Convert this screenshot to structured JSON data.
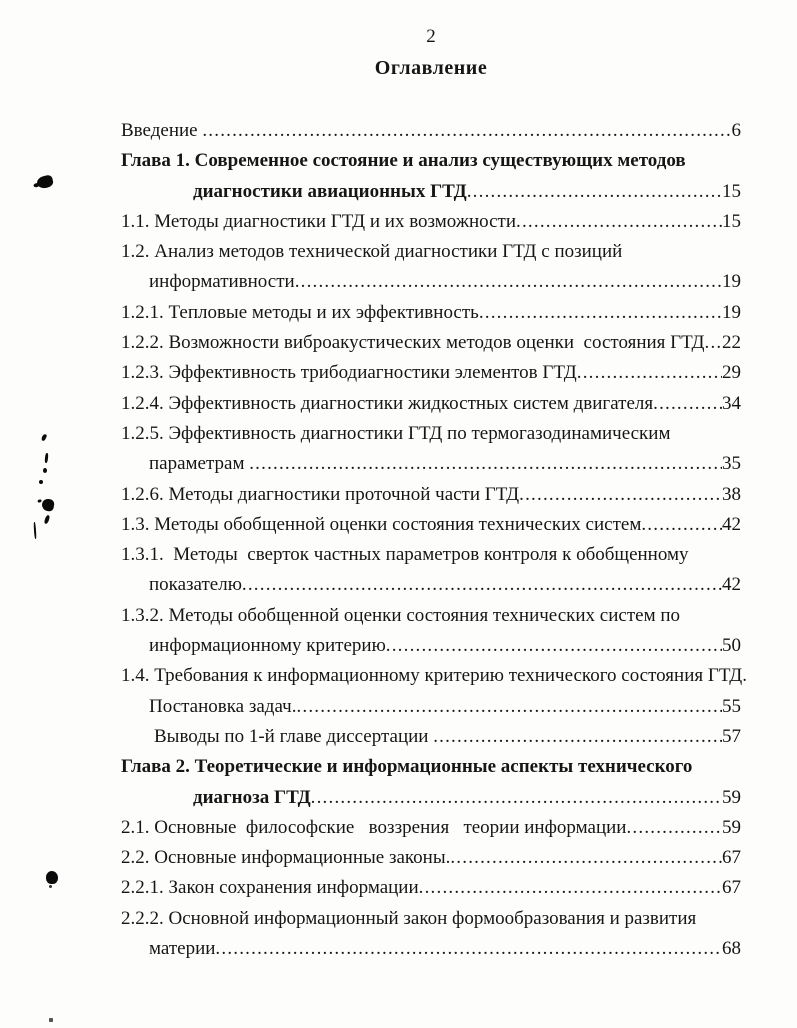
{
  "page": {
    "number": "2",
    "title": "Оглавление"
  },
  "toc": {
    "leader_dot": ".",
    "entries": [
      {
        "text": "Введение ",
        "indent": "main",
        "bold": false,
        "dots": true,
        "page": "6"
      },
      {
        "text": "Глава 1. Современное состояние и анализ существующих методов",
        "indent": "main",
        "bold": true,
        "dots": false,
        "page": null
      },
      {
        "text": "диагностики авиационных ГТД",
        "indent": "chapter",
        "bold": true,
        "dots": true,
        "page": "15"
      },
      {
        "text": "1.1. Методы диагностики ГТД и их возможности",
        "indent": "main",
        "bold": false,
        "dots": true,
        "page": "15"
      },
      {
        "text": "1.2. Анализ методов технической диагностики ГТД с позиций",
        "indent": "main",
        "bold": false,
        "dots": false,
        "page": null
      },
      {
        "text": "информативности",
        "indent": "cont",
        "bold": false,
        "dots": true,
        "page": "19"
      },
      {
        "text": "1.2.1. Тепловые методы и их эффективность",
        "indent": "main",
        "bold": false,
        "dots": true,
        "page": "19"
      },
      {
        "text": "1.2.2. Возможности виброакустических методов оценки  состояния ГТД",
        "indent": "main",
        "bold": false,
        "dots": true,
        "page": "22"
      },
      {
        "text": "1.2.3. Эффективность трибодиагностики элементов ГТД",
        "indent": "main",
        "bold": false,
        "dots": true,
        "page": "29"
      },
      {
        "text": "1.2.4. Эффективность диагностики жидкостных систем двигателя",
        "indent": "main",
        "bold": false,
        "dots": true,
        "page": "34"
      },
      {
        "text": "1.2.5. Эффективность диагностики ГТД по термогазодинамическим",
        "indent": "main",
        "bold": false,
        "dots": false,
        "page": null
      },
      {
        "text": "параметрам ",
        "indent": "cont",
        "bold": false,
        "dots": true,
        "page": "35"
      },
      {
        "text": "1.2.6. Методы диагностики проточной части ГТД",
        "indent": "main",
        "bold": false,
        "dots": true,
        "page": "38"
      },
      {
        "text": "1.3. Методы обобщенной оценки состояния технических систем",
        "indent": "main",
        "bold": false,
        "dots": true,
        "page": "42"
      },
      {
        "text": "1.3.1.  Методы  сверток частных параметров контроля к обобщенному",
        "indent": "main",
        "bold": false,
        "dots": false,
        "page": null
      },
      {
        "text": "показателю",
        "indent": "cont",
        "bold": false,
        "dots": true,
        "page": "42"
      },
      {
        "text": "1.3.2. Методы обобщенной оценки состояния технических систем по",
        "indent": "main",
        "bold": false,
        "dots": false,
        "page": null
      },
      {
        "text": "информационному критерию",
        "indent": "cont",
        "bold": false,
        "dots": true,
        "page": "50"
      },
      {
        "text": "1.4. Требования к информационному критерию технического состояния ГТД.",
        "indent": "main",
        "bold": false,
        "dots": false,
        "page": null
      },
      {
        "text": "Постановка задач.",
        "indent": "cont",
        "bold": false,
        "dots": true,
        "page": "55"
      },
      {
        "text": "Выводы по 1-й главе диссертации ",
        "indent": "cont2",
        "bold": false,
        "dots": true,
        "page": "57"
      },
      {
        "text": "Глава 2. Теоретические и информационные аспекты технического",
        "indent": "main",
        "bold": true,
        "dots": false,
        "page": null
      },
      {
        "text": "диагноза ГТД",
        "indent": "chapter",
        "bold": true,
        "dots": true,
        "page": "59"
      },
      {
        "text": "2.1. Основные  философские   воззрения   теории информации",
        "indent": "main",
        "bold": false,
        "dots": true,
        "page": "59"
      },
      {
        "text": "2.2. Основные информационные законы.",
        "indent": "main",
        "bold": false,
        "dots": true,
        "page": "67"
      },
      {
        "text": "2.2.1. Закон сохранения информации",
        "indent": "main",
        "bold": false,
        "dots": true,
        "page": "67"
      },
      {
        "text": "2.2.2. Основной информационный закон формообразования и развития",
        "indent": "main",
        "bold": false,
        "dots": false,
        "page": null
      },
      {
        "text": "материи",
        "indent": "cont",
        "bold": false,
        "dots": true,
        "page": "68"
      }
    ]
  }
}
